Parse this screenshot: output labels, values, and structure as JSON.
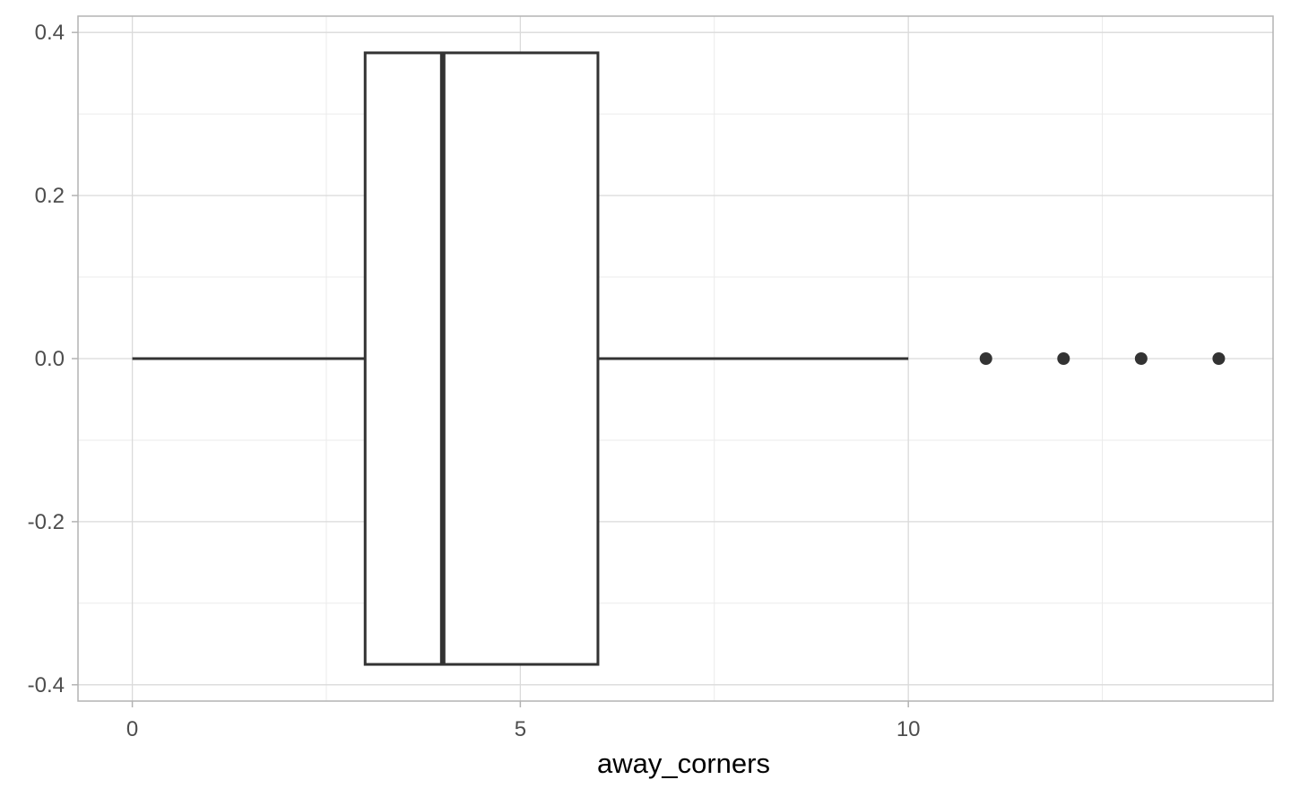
{
  "chart_data": {
    "type": "boxplot",
    "title": "",
    "xlabel": "away_corners",
    "ylabel": "",
    "xlim": [
      -0.7,
      14.7
    ],
    "ylim": [
      -0.42,
      0.42
    ],
    "x_ticks": [
      0,
      5,
      10
    ],
    "x_tick_labels": [
      "0",
      "5",
      "10"
    ],
    "y_ticks": [
      0.4,
      0.2,
      0.0,
      -0.2,
      -0.4
    ],
    "y_tick_labels": [
      "0.4",
      "0.2",
      "0.0",
      "-0.2",
      "-0.4"
    ],
    "x_minor_ticks": [
      2.5,
      7.5,
      12.5
    ],
    "y_minor_ticks": [
      0.3,
      0.1,
      -0.1,
      -0.3
    ],
    "grid": true,
    "box": {
      "min": 0,
      "q1": 3,
      "median": 4,
      "q3": 6,
      "max": 10,
      "y_center": 0.0,
      "y_half_width": 0.375
    },
    "outliers": [
      11,
      12,
      13,
      14
    ],
    "colors": {
      "box_stroke": "#333333",
      "box_fill": "#ffffff",
      "grid_major": "#dadada",
      "grid_minor": "#ebebeb",
      "panel_border": "#b3b3b3",
      "tick_label": "#4d4d4d",
      "axis_title": "#000000"
    }
  }
}
